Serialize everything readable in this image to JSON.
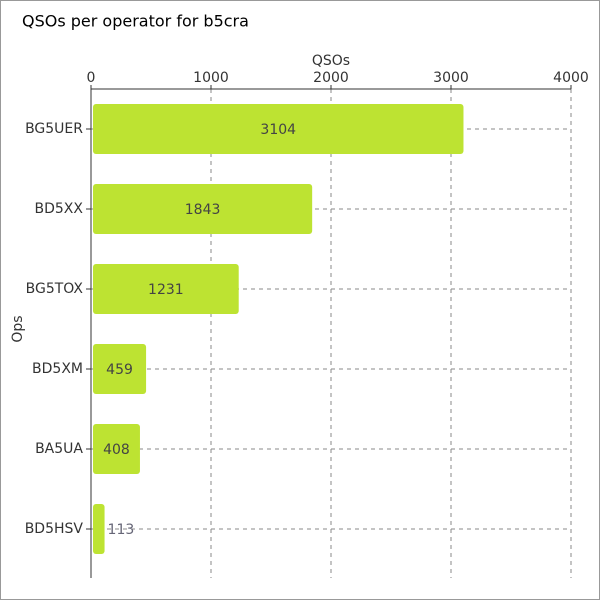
{
  "chart_data": {
    "type": "barh",
    "title": "QSOs per operator for b5cra",
    "x_label": "QSOs",
    "y_label": "Ops",
    "categories": [
      "BG5UER",
      "BD5XX",
      "BG5TOX",
      "BD5XM",
      "BA5UA",
      "BD5HSV"
    ],
    "values": [
      3104,
      1843,
      1231,
      459,
      408,
      113
    ],
    "color": "#bde332",
    "xlim": [
      0,
      4000
    ],
    "xticks": [
      0,
      1000,
      2000,
      3000,
      4000
    ],
    "grid": true
  }
}
